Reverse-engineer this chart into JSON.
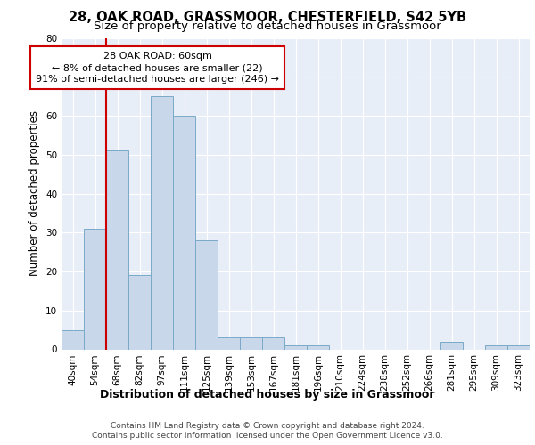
{
  "title1": "28, OAK ROAD, GRASSMOOR, CHESTERFIELD, S42 5YB",
  "title2": "Size of property relative to detached houses in Grassmoor",
  "xlabel": "Distribution of detached houses by size in Grassmoor",
  "ylabel": "Number of detached properties",
  "categories": [
    "40sqm",
    "54sqm",
    "68sqm",
    "82sqm",
    "97sqm",
    "111sqm",
    "125sqm",
    "139sqm",
    "153sqm",
    "167sqm",
    "181sqm",
    "196sqm",
    "210sqm",
    "224sqm",
    "238sqm",
    "252sqm",
    "266sqm",
    "281sqm",
    "295sqm",
    "309sqm",
    "323sqm"
  ],
  "values": [
    5,
    31,
    51,
    19,
    65,
    60,
    28,
    3,
    3,
    3,
    1,
    1,
    0,
    0,
    0,
    0,
    0,
    2,
    0,
    1,
    1
  ],
  "bar_color": "#c8d8ea",
  "bar_edge_color": "#7aaac8",
  "annotation_text": "28 OAK ROAD: 60sqm\n← 8% of detached houses are smaller (22)\n91% of semi-detached houses are larger (246) →",
  "annotation_box_color": "white",
  "annotation_box_edge_color": "#cc0000",
  "vline_color": "#cc0000",
  "vline_x": 1.5,
  "ylim": [
    0,
    80
  ],
  "yticks": [
    0,
    10,
    20,
    30,
    40,
    50,
    60,
    70,
    80
  ],
  "footer1": "Contains HM Land Registry data © Crown copyright and database right 2024.",
  "footer2": "Contains public sector information licensed under the Open Government Licence v3.0.",
  "plot_bg_color": "#e8eef8",
  "title1_fontsize": 10.5,
  "title2_fontsize": 9.5,
  "tick_fontsize": 7.5,
  "ylabel_fontsize": 8.5,
  "xlabel_fontsize": 9,
  "annotation_fontsize": 8,
  "footer_fontsize": 6.5
}
